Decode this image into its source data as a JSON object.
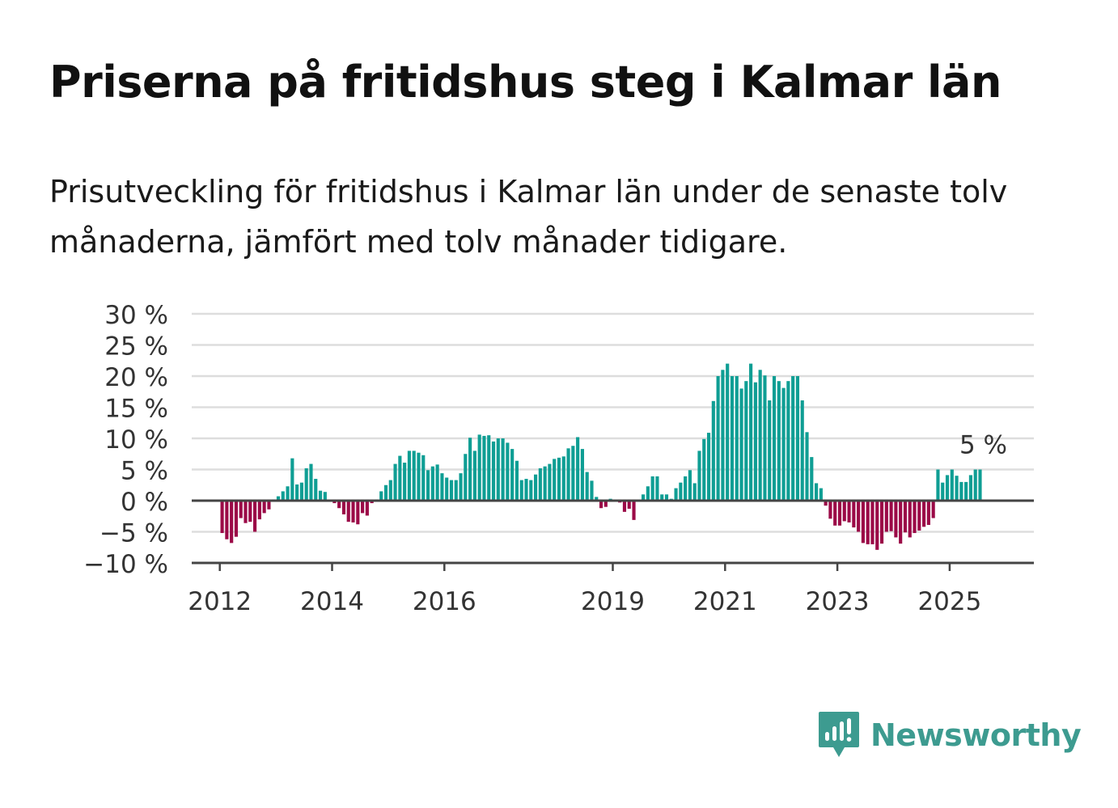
{
  "title": "Priserna på fritidshus steg i Kalmar län",
  "subtitle": "Prisutveckling för fritidshus i Kalmar län under de senaste tolv månaderna, jämfört med tolv månader tidigare.",
  "brand": {
    "name": "Newsworthy",
    "color": "#3d9b90"
  },
  "colors": {
    "positive": "#0f9e94",
    "negative": "#9b0a47",
    "grid": "#dddddd",
    "axis": "#444444"
  },
  "chart_data": {
    "type": "bar",
    "ylim": [
      -10,
      30
    ],
    "yticks": [
      -10,
      -5,
      0,
      5,
      10,
      15,
      20,
      25,
      30
    ],
    "ytick_labels": [
      "−10 %",
      "−5 %",
      "0 %",
      "5 %",
      "10 %",
      "15 %",
      "20 %",
      "25 %",
      "30 %"
    ],
    "xstart": 2011.5,
    "xend": 2026.5,
    "xticks": [
      2012,
      2014,
      2016,
      2019,
      2021,
      2023,
      2025
    ],
    "xtick_labels": [
      "2012",
      "2014",
      "2016",
      "2019",
      "2021",
      "2023",
      "2025"
    ],
    "last_value_label": "5 %",
    "series": [
      {
        "start": "2012-01",
        "frequency": "monthly",
        "values": [
          -5.2,
          -6.2,
          -6.8,
          -5.8,
          -2.8,
          -3.6,
          -3.4,
          -5.0,
          -3.0,
          -2.0,
          -1.4,
          0.2,
          0.7,
          1.5,
          2.3,
          6.8,
          2.6,
          2.9,
          5.2,
          5.9,
          3.5,
          1.6,
          1.4,
          0.1,
          -0.4,
          -1.2,
          -2.2,
          -3.4,
          -3.5,
          -3.8,
          -2.0,
          -2.4,
          -0.4,
          0.2,
          1.5,
          2.5,
          3.3,
          5.9,
          7.2,
          6.1,
          8.0,
          8.0,
          7.7,
          7.3,
          4.9,
          5.5,
          5.8,
          4.4,
          3.7,
          3.3,
          3.3,
          4.4,
          7.5,
          10.1,
          8.0,
          10.6,
          10.4,
          10.5,
          9.5,
          10.0,
          10.0,
          9.3,
          8.3,
          6.4,
          3.3,
          3.5,
          3.3,
          4.2,
          5.2,
          5.5,
          5.9,
          6.7,
          6.9,
          7.1,
          8.4,
          8.8,
          10.2,
          8.3,
          4.6,
          3.2,
          0.6,
          -1.2,
          -1.0,
          0.3,
          0.1,
          -0.3,
          -1.8,
          -1.3,
          -3.1,
          0.1,
          1.0,
          2.3,
          3.9,
          3.9,
          1.0,
          1.0,
          0.3,
          2.0,
          2.9,
          3.9,
          4.9,
          2.8,
          8.0,
          9.9,
          10.9,
          16.0,
          20.0,
          21.0,
          22.0,
          20.0,
          20.0,
          18.0,
          19.2,
          22.0,
          19.0,
          21.0,
          20.1,
          16.1,
          20.0,
          19.2,
          18.1,
          19.2,
          20.0,
          20.0,
          16.1,
          11.0,
          7.0,
          2.8,
          2.0,
          -0.8,
          -2.9,
          -4.0,
          -4.0,
          -3.3,
          -3.5,
          -4.3,
          -5.0,
          -6.8,
          -7.0,
          -7.0,
          -7.9,
          -6.9,
          -5.0,
          -4.9,
          -5.9,
          -6.9,
          -5.1,
          -5.9,
          -5.2,
          -4.8,
          -4.2,
          -3.9,
          -2.8,
          5.0,
          2.9,
          4.1,
          5.0,
          4.0,
          3.0,
          3.0,
          4.1,
          5.0,
          5.0
        ]
      }
    ]
  }
}
